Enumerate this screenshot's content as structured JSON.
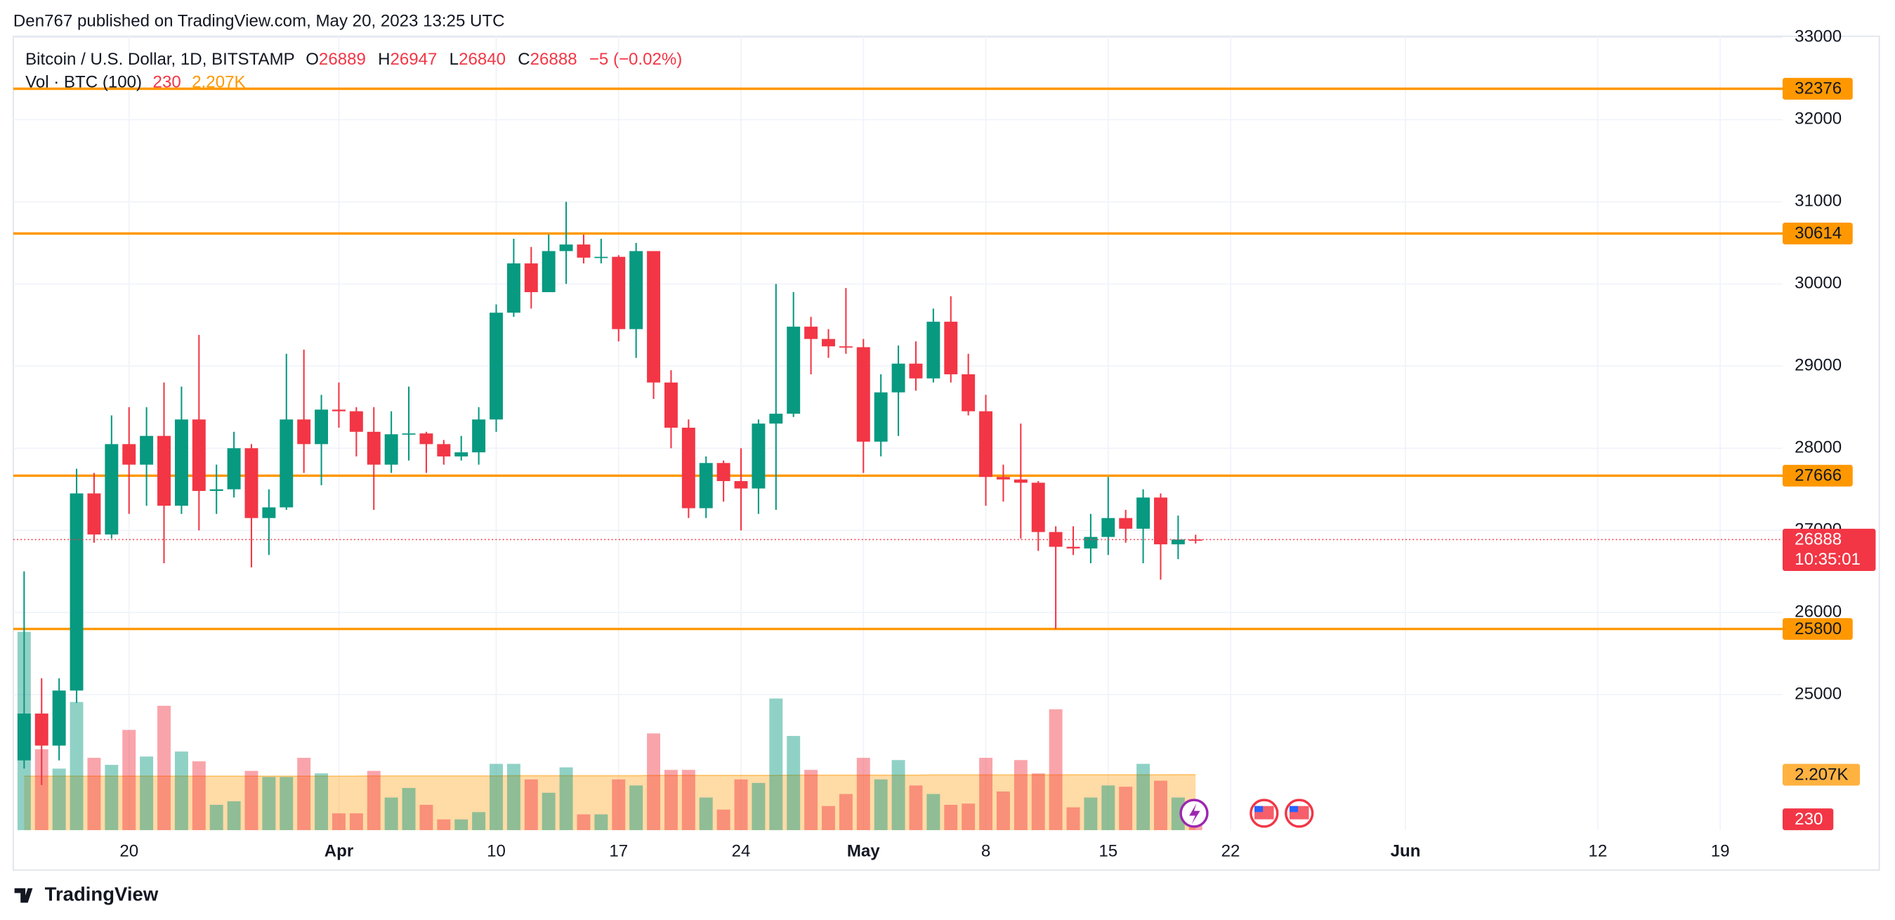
{
  "header": {
    "publisher": "Den767 published on TradingView.com, May 20, 2023 13:25 UTC"
  },
  "footer": {
    "brand": "TradingView"
  },
  "chart_data": {
    "type": "candlestick",
    "title": "Bitcoin / U.S. Dollar, 1D, BITSTAMP",
    "ohlc_keys": [
      "O",
      "H",
      "L",
      "C"
    ],
    "change": "−5 (−0.02%)",
    "volume_title": "Vol · BTC (100)",
    "open": [
      24200,
      24770,
      24380,
      25050,
      27450,
      26950,
      28050,
      27800,
      28150,
      27300,
      28350,
      27480,
      27500,
      28000,
      27150,
      27280,
      28350,
      28050,
      28470,
      28450,
      28200,
      27800,
      28170,
      28180,
      28050,
      27900,
      27950,
      28350,
      29650,
      30250,
      29900,
      30400,
      30480,
      30320,
      30330,
      29450,
      30400,
      28800,
      28250,
      27270,
      27820,
      27600,
      27510,
      28300,
      28420,
      29480,
      29330,
      29240,
      29230,
      28080,
      28680,
      29030,
      28850,
      29540,
      28900,
      28450,
      27650,
      27620,
      27580,
      26980,
      26800,
      26780,
      26920,
      27150,
      27020,
      27400,
      26830,
      26889
    ],
    "high": [
      26500,
      25200,
      25200,
      27750,
      27700,
      28400,
      28500,
      28500,
      28800,
      28750,
      29380,
      27800,
      28200,
      28050,
      27500,
      29150,
      29200,
      28650,
      28800,
      28500,
      28500,
      28450,
      28750,
      28200,
      28100,
      28150,
      28500,
      29750,
      30550,
      30450,
      30600,
      31000,
      30600,
      30550,
      30350,
      30500,
      30400,
      28950,
      28350,
      27900,
      27850,
      28000,
      28350,
      30000,
      29900,
      29600,
      29450,
      29950,
      29330,
      28900,
      29250,
      29300,
      29700,
      29850,
      29150,
      28650,
      27800,
      28300,
      27600,
      27050,
      27050,
      27200,
      27650,
      27250,
      27500,
      27450,
      27180,
      26947
    ],
    "low": [
      24100,
      23900,
      24200,
      24900,
      26850,
      26900,
      27200,
      27300,
      26600,
      27200,
      27000,
      27200,
      27400,
      26550,
      26700,
      27250,
      27700,
      27550,
      28250,
      27900,
      27250,
      27700,
      27850,
      27700,
      27800,
      27850,
      27800,
      28200,
      29600,
      29700,
      29900,
      30000,
      30250,
      30250,
      29300,
      29100,
      28600,
      28000,
      27150,
      27150,
      27350,
      27000,
      27200,
      27250,
      28380,
      28900,
      29100,
      29150,
      27700,
      27900,
      28150,
      28700,
      28800,
      28800,
      28400,
      27300,
      27350,
      26900,
      26750,
      25800,
      26700,
      26600,
      26700,
      26850,
      26600,
      26400,
      26650,
      26840
    ],
    "close": [
      24770,
      24380,
      25050,
      27450,
      26950,
      28050,
      27800,
      28150,
      27300,
      28350,
      27480,
      27500,
      28000,
      27150,
      27280,
      28350,
      28050,
      28470,
      28450,
      28200,
      27800,
      28170,
      28180,
      28050,
      27900,
      27950,
      28350,
      29650,
      30250,
      29900,
      30400,
      30480,
      30320,
      30330,
      29450,
      30400,
      28800,
      28250,
      27270,
      27820,
      27600,
      27510,
      28300,
      28420,
      29480,
      29330,
      29240,
      29230,
      28080,
      28680,
      29030,
      28850,
      29540,
      28900,
      28450,
      27650,
      27620,
      27580,
      26980,
      26800,
      26780,
      26920,
      27150,
      27020,
      27400,
      26830,
      26889,
      26888
    ],
    "volume": [
      7890,
      3220,
      2450,
      5100,
      2880,
      2600,
      3990,
      2930,
      4950,
      3130,
      2740,
      1010,
      1150,
      2360,
      2120,
      2120,
      2880,
      2260,
      670,
      670,
      2360,
      1300,
      1680,
      1010,
      430,
      430,
      720,
      2640,
      2640,
      2020,
      1490,
      2500,
      630,
      630,
      2020,
      1780,
      3850,
      2400,
      2400,
      1300,
      820,
      2020,
      1880,
      5240,
      3750,
      2400,
      960,
      1440,
      2880,
      2020,
      2790,
      1780,
      1440,
      1010,
      1060,
      2880,
      1540,
      2790,
      2260,
      4810,
      910,
      1300,
      1780,
      1730,
      2640,
      1970,
      1300,
      230
    ],
    "volume_ma": [
      2150,
      2150,
      2150,
      2150,
      2150,
      2150,
      2150,
      2150,
      2150,
      2150,
      2150,
      2150,
      2150,
      2150,
      2150,
      2150,
      2150,
      2150,
      2150,
      2150,
      2160,
      2160,
      2160,
      2160,
      2160,
      2160,
      2160,
      2160,
      2170,
      2170,
      2170,
      2170,
      2170,
      2170,
      2170,
      2170,
      2180,
      2180,
      2180,
      2180,
      2180,
      2180,
      2180,
      2180,
      2190,
      2190,
      2190,
      2190,
      2190,
      2190,
      2190,
      2190,
      2200,
      2200,
      2200,
      2200,
      2200,
      2200,
      2200,
      2200,
      2205,
      2205,
      2205,
      2205,
      2205,
      2205,
      2207,
      2207
    ],
    "volume_ma_label": "2.207K",
    "colors": {
      "up": "#089981",
      "down": "#f23645",
      "level": "#ff9800",
      "volume_ma": "#ff9800"
    },
    "levels": [
      32376,
      30614,
      27666,
      25800
    ],
    "countdown": "10:35:01",
    "ylim": [
      23350,
      33015
    ],
    "yticks": [
      25000,
      26000,
      27000,
      28000,
      29000,
      30000,
      31000,
      32000,
      33000
    ],
    "xlim": [
      -0.62,
      106.1
    ],
    "xticks": [
      {
        "value": 6,
        "label": "20"
      },
      {
        "value": 18,
        "label": "Apr"
      },
      {
        "value": 27,
        "label": "10"
      },
      {
        "value": 34,
        "label": "17"
      },
      {
        "value": 41,
        "label": "24"
      },
      {
        "value": 48,
        "label": "May"
      },
      {
        "value": 55,
        "label": "8"
      },
      {
        "value": 62,
        "label": "15"
      },
      {
        "value": 69,
        "label": "22"
      },
      {
        "value": 79,
        "label": "Jun"
      },
      {
        "value": 90,
        "label": "12"
      },
      {
        "value": 97,
        "label": "19"
      }
    ],
    "volume_ylim": [
      0,
      10000
    ],
    "grid": true
  }
}
